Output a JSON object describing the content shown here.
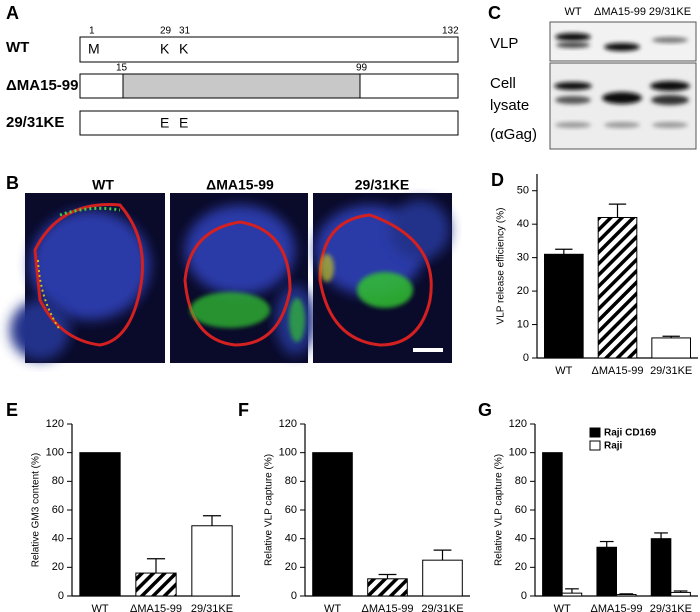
{
  "panel_a": {
    "label": "A",
    "rows": [
      {
        "name": "WT",
        "positions": [
          1,
          29,
          31,
          132
        ],
        "residues": [
          "M",
          "K",
          "K"
        ]
      },
      {
        "name": "ΔMA15-99",
        "positions": [
          15,
          99
        ]
      },
      {
        "name": "29/31KE",
        "residues": [
          "E",
          "E"
        ]
      }
    ]
  },
  "panel_b": {
    "label": "B",
    "images": [
      "WT",
      "ΔMA15-99",
      "29/31KE"
    ]
  },
  "panel_c": {
    "label": "C",
    "lanes": [
      "WT",
      "ΔMA15-99",
      "29/31KE"
    ],
    "rows": [
      "VLP",
      "Cell",
      "lysate",
      "(αGag)"
    ]
  },
  "chart_data": [
    {
      "type": "bar",
      "panel_label": "D",
      "y_label": "VLP release efficiency (%)",
      "categories": [
        "WT",
        "ΔMA15-99",
        "29/31KE"
      ],
      "values": [
        31,
        42,
        6
      ],
      "errors": [
        1.5,
        4,
        0.5
      ],
      "colors": [
        "#000000",
        "#ffffff",
        "#ffffff"
      ],
      "hatch": [
        false,
        true,
        false
      ],
      "ylim": [
        0,
        55
      ],
      "yticks": [
        0,
        10,
        20,
        30,
        40,
        50
      ]
    },
    {
      "type": "bar",
      "panel_label": "E",
      "y_label": "Relative GM3 content (%)",
      "categories": [
        "WT",
        "ΔMA15-99",
        "29/31KE"
      ],
      "values": [
        100,
        16,
        49
      ],
      "errors": [
        null,
        10,
        7
      ],
      "colors": [
        "#000000",
        "#ffffff",
        "#ffffff"
      ],
      "hatch": [
        false,
        true,
        false
      ],
      "ylim": [
        0,
        120
      ],
      "yticks": [
        0,
        20,
        40,
        60,
        80,
        100,
        120
      ]
    },
    {
      "type": "bar",
      "panel_label": "F",
      "y_label": "Relative VLP capture (%)",
      "categories": [
        "WT",
        "ΔMA15-99",
        "29/31KE"
      ],
      "values": [
        100,
        12,
        25
      ],
      "errors": [
        null,
        3,
        7
      ],
      "colors": [
        "#000000",
        "#ffffff",
        "#ffffff"
      ],
      "hatch": [
        false,
        true,
        false
      ],
      "ylim": [
        0,
        120
      ],
      "yticks": [
        0,
        20,
        40,
        60,
        80,
        100,
        120
      ]
    },
    {
      "type": "grouped_bar",
      "panel_label": "G",
      "y_label": "Relative VLP capture (%)",
      "categories": [
        "WT",
        "ΔMA15-99",
        "29/31KE"
      ],
      "series": [
        {
          "name": "Raji CD169",
          "color": "#000000",
          "values": [
            100,
            34,
            40
          ],
          "errors": [
            null,
            4,
            4
          ]
        },
        {
          "name": "Raji",
          "color": "#ffffff",
          "values": [
            2,
            1,
            2.5
          ],
          "errors": [
            3,
            0.5,
            1
          ]
        }
      ],
      "legend": "upper right",
      "ylim": [
        0,
        120
      ],
      "yticks": [
        0,
        20,
        40,
        60,
        80,
        100,
        120
      ]
    }
  ]
}
